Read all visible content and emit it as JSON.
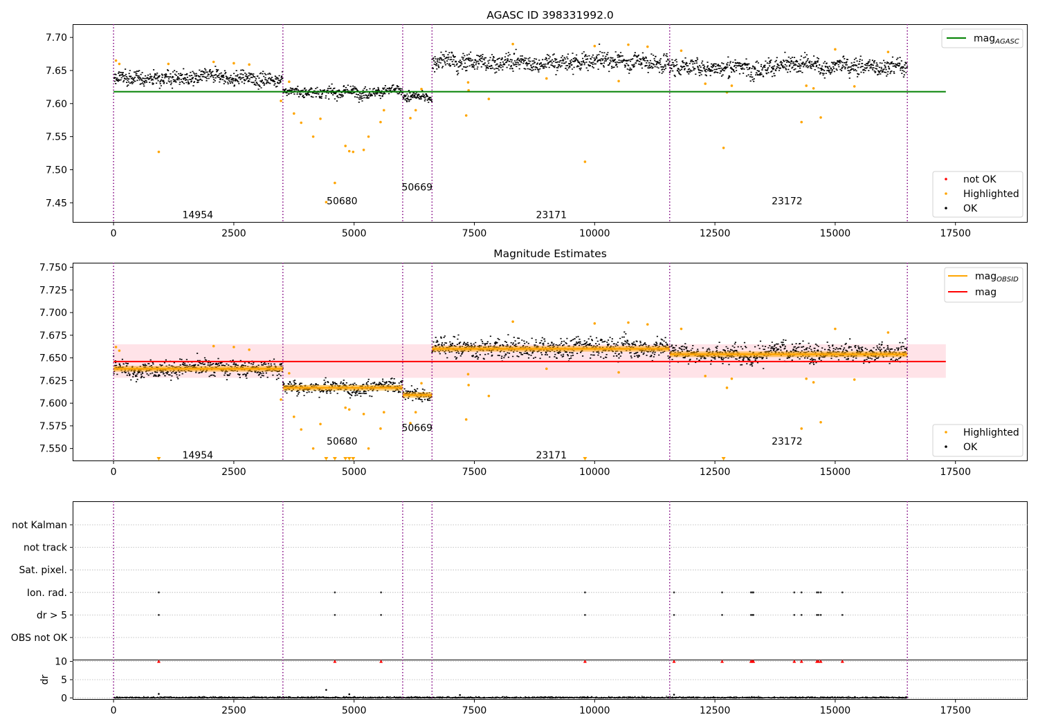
{
  "figure": {
    "width": 1500,
    "height": 1050
  },
  "colors": {
    "ok": "#000000",
    "highlighted": "#ffa500",
    "not_ok": "#ff0000",
    "agasc": "#008000",
    "mag": "#ff0000",
    "mag_obsid": "#ffa500",
    "obs_line": "#800080",
    "band": "#ffc0cb",
    "grid": "#b0b0b0"
  },
  "chart_data": [
    {
      "type": "scatter",
      "title": "AGASC ID 398331992.0",
      "xlabel": "",
      "ylabel": "",
      "xlim": [
        -850,
        19000
      ],
      "ylim": [
        7.42,
        7.72
      ],
      "xticks": [
        0,
        2500,
        5000,
        7500,
        10000,
        12500,
        15000,
        17500
      ],
      "yticks": [
        7.45,
        7.5,
        7.55,
        7.6,
        7.65,
        7.7
      ],
      "legend_top": {
        "position": "top-right",
        "entries": [
          {
            "label": "mag",
            "sub": "AGASC",
            "kind": "line",
            "color": "#008000"
          }
        ]
      },
      "legend_bottom": {
        "position": "bottom-right",
        "entries": [
          {
            "label": "not OK",
            "kind": "dot",
            "color": "#ff0000"
          },
          {
            "label": "Highlighted",
            "kind": "dot",
            "color": "#ffa500"
          },
          {
            "label": "OK",
            "kind": "dot",
            "color": "#000000"
          }
        ]
      },
      "obs_boundaries": [
        0,
        3520,
        6010,
        6620,
        11560,
        16500
      ],
      "obs_labels": [
        {
          "obsid": "14954",
          "x": 1750,
          "y": 7.432
        },
        {
          "obsid": "50680",
          "x": 4750,
          "y": 7.453
        },
        {
          "obsid": "50669",
          "x": 6310,
          "y": 7.474
        },
        {
          "obsid": "23171",
          "x": 9100,
          "y": 7.432
        },
        {
          "obsid": "23172",
          "x": 14000,
          "y": 7.453
        }
      ],
      "agasc_mag": {
        "value": 7.618,
        "x_range": [
          0,
          17300
        ]
      },
      "ok_segments": [
        {
          "x0": 0,
          "x1": 3520,
          "mean": 7.638,
          "spread": 0.012
        },
        {
          "x0": 3520,
          "x1": 6010,
          "mean": 7.617,
          "spread": 0.009
        },
        {
          "x0": 6010,
          "x1": 6620,
          "mean": 7.609,
          "spread": 0.008
        },
        {
          "x0": 6620,
          "x1": 11560,
          "mean": 7.662,
          "spread": 0.015
        },
        {
          "x0": 11560,
          "x1": 16500,
          "mean": 7.655,
          "spread": 0.014
        }
      ],
      "highlighted": [
        [
          50,
          7.665
        ],
        [
          120,
          7.66
        ],
        [
          940,
          7.527
        ],
        [
          1140,
          7.66
        ],
        [
          2080,
          7.663
        ],
        [
          2500,
          7.661
        ],
        [
          2820,
          7.659
        ],
        [
          3480,
          7.604
        ],
        [
          3650,
          7.633
        ],
        [
          3750,
          7.585
        ],
        [
          3900,
          7.571
        ],
        [
          4150,
          7.55
        ],
        [
          4300,
          7.577
        ],
        [
          4420,
          7.451
        ],
        [
          4600,
          7.48
        ],
        [
          4820,
          7.536
        ],
        [
          4900,
          7.528
        ],
        [
          4980,
          7.527
        ],
        [
          5200,
          7.53
        ],
        [
          5300,
          7.55
        ],
        [
          5550,
          7.572
        ],
        [
          5620,
          7.59
        ],
        [
          6170,
          7.578
        ],
        [
          6280,
          7.59
        ],
        [
          6400,
          7.622
        ],
        [
          7330,
          7.582
        ],
        [
          7370,
          7.632
        ],
        [
          7380,
          7.62
        ],
        [
          7800,
          7.607
        ],
        [
          8300,
          7.69
        ],
        [
          9000,
          7.638
        ],
        [
          9800,
          7.512
        ],
        [
          10000,
          7.687
        ],
        [
          10500,
          7.634
        ],
        [
          10700,
          7.689
        ],
        [
          11100,
          7.686
        ],
        [
          11800,
          7.68
        ],
        [
          12300,
          7.63
        ],
        [
          12680,
          7.533
        ],
        [
          12750,
          7.617
        ],
        [
          12850,
          7.627
        ],
        [
          14300,
          7.572
        ],
        [
          14400,
          7.627
        ],
        [
          14550,
          7.623
        ],
        [
          14700,
          7.579
        ],
        [
          15000,
          7.682
        ],
        [
          15400,
          7.626
        ],
        [
          16100,
          7.678
        ]
      ]
    },
    {
      "type": "scatter",
      "title": "Magnitude Estimates",
      "xlabel": "",
      "ylabel": "",
      "xlim": [
        -850,
        19000
      ],
      "ylim": [
        7.536,
        7.755
      ],
      "xticks": [
        0,
        2500,
        5000,
        7500,
        10000,
        12500,
        15000,
        17500
      ],
      "yticks": [
        7.55,
        7.575,
        7.6,
        7.625,
        7.65,
        7.675,
        7.7,
        7.725,
        7.75
      ],
      "legend_top": {
        "position": "top-right",
        "entries": [
          {
            "label": "mag",
            "sub": "OBSID",
            "kind": "line",
            "color": "#ffa500"
          },
          {
            "label": "mag",
            "kind": "line",
            "color": "#ff0000"
          }
        ]
      },
      "legend_bottom": {
        "position": "bottom-right",
        "entries": [
          {
            "label": "Highlighted",
            "kind": "dot",
            "color": "#ffa500"
          },
          {
            "label": "OK",
            "kind": "dot",
            "color": "#000000"
          }
        ]
      },
      "obs_boundaries": [
        0,
        3520,
        6010,
        6620,
        11560,
        16500
      ],
      "obs_labels": [
        {
          "obsid": "14954",
          "x": 1750,
          "y": 7.543
        },
        {
          "obsid": "50680",
          "x": 4750,
          "y": 7.558
        },
        {
          "obsid": "50669",
          "x": 6310,
          "y": 7.573
        },
        {
          "obsid": "23171",
          "x": 9100,
          "y": 7.543
        },
        {
          "obsid": "23172",
          "x": 14000,
          "y": 7.558
        }
      ],
      "mag": {
        "value": 7.646,
        "band": [
          7.628,
          7.665
        ],
        "x_range": [
          0,
          17300
        ]
      },
      "mag_obsid": [
        {
          "x0": 0,
          "x1": 3520,
          "value": 7.638
        },
        {
          "x0": 3520,
          "x1": 6010,
          "value": 7.617
        },
        {
          "x0": 6010,
          "x1": 6620,
          "value": 7.609
        },
        {
          "x0": 6620,
          "x1": 11560,
          "value": 7.66
        },
        {
          "x0": 11560,
          "x1": 16500,
          "value": 7.654
        }
      ],
      "ok_segments": [
        {
          "x0": 0,
          "x1": 3520,
          "mean": 7.638,
          "spread": 0.01
        },
        {
          "x0": 3520,
          "x1": 6010,
          "mean": 7.617,
          "spread": 0.008
        },
        {
          "x0": 6010,
          "x1": 6620,
          "mean": 7.609,
          "spread": 0.007
        },
        {
          "x0": 6620,
          "x1": 11560,
          "mean": 7.661,
          "spread": 0.012
        },
        {
          "x0": 11560,
          "x1": 16500,
          "mean": 7.655,
          "spread": 0.011
        }
      ],
      "highlighted": [
        [
          50,
          7.662
        ],
        [
          120,
          7.658
        ],
        [
          2080,
          7.663
        ],
        [
          2500,
          7.662
        ],
        [
          2820,
          7.659
        ],
        [
          3480,
          7.604
        ],
        [
          3650,
          7.633
        ],
        [
          3750,
          7.585
        ],
        [
          3900,
          7.571
        ],
        [
          4150,
          7.55
        ],
        [
          4300,
          7.577
        ],
        [
          4820,
          7.595
        ],
        [
          4900,
          7.593
        ],
        [
          5200,
          7.588
        ],
        [
          5300,
          7.55
        ],
        [
          5550,
          7.572
        ],
        [
          5620,
          7.59
        ],
        [
          6170,
          7.578
        ],
        [
          6280,
          7.59
        ],
        [
          6400,
          7.622
        ],
        [
          7330,
          7.582
        ],
        [
          7370,
          7.632
        ],
        [
          7380,
          7.62
        ],
        [
          7800,
          7.608
        ],
        [
          8300,
          7.69
        ],
        [
          9000,
          7.638
        ],
        [
          10000,
          7.688
        ],
        [
          10500,
          7.634
        ],
        [
          10700,
          7.689
        ],
        [
          11100,
          7.687
        ],
        [
          11800,
          7.682
        ],
        [
          12300,
          7.63
        ],
        [
          12750,
          7.617
        ],
        [
          12850,
          7.627
        ],
        [
          14300,
          7.572
        ],
        [
          14400,
          7.627
        ],
        [
          14550,
          7.623
        ],
        [
          14700,
          7.579
        ],
        [
          15000,
          7.682
        ],
        [
          15400,
          7.626
        ],
        [
          16100,
          7.678
        ]
      ],
      "offscale_low": [
        940,
        4420,
        4600,
        4820,
        4900,
        4980,
        9800,
        12680
      ]
    },
    {
      "type": "scatter",
      "title": "",
      "xlabel": "",
      "ylabel": "",
      "xlim": [
        -850,
        19000
      ],
      "categories": [
        "not Kalman",
        "not track",
        "Sat. pixel.",
        "Ion. rad.",
        "dr > 5",
        "OBS not OK"
      ],
      "flag_points": {
        "Ion. rad.": [
          940,
          4600,
          5560,
          9800,
          11650,
          12650,
          13250,
          13280,
          13300,
          14150,
          14300,
          14620,
          14650,
          14700,
          15150
        ],
        "dr > 5": [
          940,
          4600,
          5560,
          9800,
          11650,
          12650,
          13250,
          13280,
          13300,
          14150,
          14300,
          14620,
          14650,
          14700,
          15150
        ]
      },
      "obs_boundaries": [
        0,
        3520,
        6010,
        6620,
        11560,
        16500
      ]
    },
    {
      "type": "scatter",
      "title": "",
      "xlabel": "",
      "ylabel": "dr",
      "xlim": [
        -850,
        19000
      ],
      "ylim": [
        -0.5,
        10.5
      ],
      "xticks": [
        0,
        2500,
        5000,
        7500,
        10000,
        12500,
        15000,
        17500
      ],
      "yticks": [
        0,
        5,
        10
      ],
      "outliers_clipped_at_10": [
        940,
        4600,
        5560,
        9800,
        11650,
        12650,
        13250,
        13280,
        13300,
        14150,
        14300,
        14620,
        14650,
        14700,
        15150
      ],
      "extra_points": [
        [
          940,
          1.1
        ],
        [
          4420,
          2.2
        ],
        [
          4900,
          1.0
        ],
        [
          7200,
          0.8
        ],
        [
          11650,
          0.9
        ]
      ],
      "obs_boundaries": [
        0,
        3520,
        6010,
        6620,
        11560,
        16500
      ]
    }
  ]
}
